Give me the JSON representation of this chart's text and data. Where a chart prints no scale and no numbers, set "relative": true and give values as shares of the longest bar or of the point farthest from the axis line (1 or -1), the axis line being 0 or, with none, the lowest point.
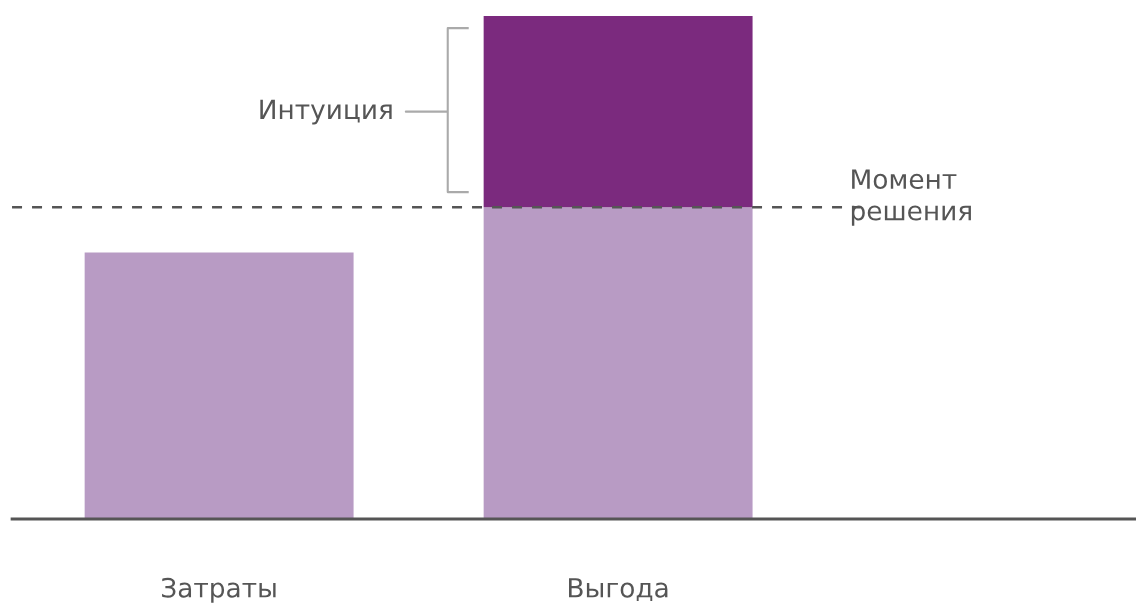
{
  "chart_data": {
    "type": "bar",
    "relative": true,
    "stacked": true,
    "categories": [
      "Затраты",
      "Выгода"
    ],
    "series": [
      {
        "color": "#b89bc4",
        "values": [
          0.53,
          0.62
        ]
      },
      {
        "color": "#7b2a7e",
        "values": [
          null,
          0.38
        ]
      }
    ],
    "ref_lines": [
      {
        "axis": "y",
        "value": 0.62,
        "label": "Момент\nрешения",
        "color": "#555555",
        "line_style": "dashed"
      }
    ],
    "annotations": [
      "Интуиция"
    ],
    "grid": false,
    "legend": false
  }
}
